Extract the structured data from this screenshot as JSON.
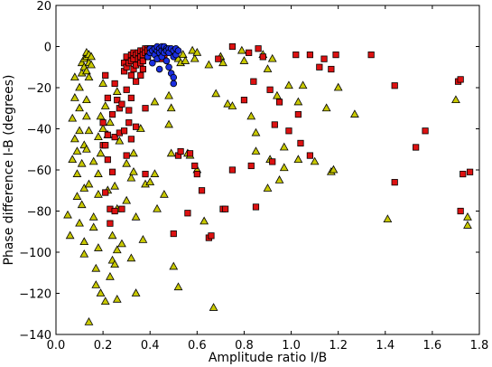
{
  "chart_data": {
    "type": "scatter",
    "title": "",
    "xlabel": "Amplitude ratio I/B",
    "ylabel": "Phase difference I-B (degrees)",
    "xlim": [
      0.0,
      1.8
    ],
    "ylim": [
      -140,
      20
    ],
    "xticks": [
      0.0,
      0.2,
      0.4,
      0.6,
      0.8,
      1.0,
      1.2,
      1.4,
      1.6,
      1.8
    ],
    "xtick_labels": [
      "0.0",
      "0.2",
      "0.4",
      "0.6",
      "0.8",
      "1.0",
      "1.2",
      "1.4",
      "1.6",
      "1.8"
    ],
    "yticks": [
      -140,
      -120,
      -100,
      -80,
      -60,
      -40,
      -20,
      0,
      20
    ],
    "ytick_labels": [
      "−140",
      "−120",
      "−100",
      "−80",
      "−60",
      "−40",
      "−20",
      "0",
      "20"
    ],
    "grid": false,
    "legend": "none",
    "series": [
      {
        "marker": "triangle",
        "color": "#c8c800",
        "points": [
          [
            0.05,
            -82
          ],
          [
            0.06,
            -92
          ],
          [
            0.07,
            -55
          ],
          [
            0.07,
            -35
          ],
          [
            0.08,
            -15
          ],
          [
            0.08,
            -25
          ],
          [
            0.08,
            -45
          ],
          [
            0.09,
            -73
          ],
          [
            0.09,
            -62
          ],
          [
            0.09,
            -51
          ],
          [
            0.1,
            -20
          ],
          [
            0.1,
            -41
          ],
          [
            0.1,
            -30
          ],
          [
            0.1,
            -86
          ],
          [
            0.11,
            -13
          ],
          [
            0.11,
            -8
          ],
          [
            0.11,
            -57
          ],
          [
            0.11,
            -77
          ],
          [
            0.12,
            -6
          ],
          [
            0.12,
            -10
          ],
          [
            0.12,
            -48
          ],
          [
            0.12,
            -69
          ],
          [
            0.12,
            -95
          ],
          [
            0.12,
            -101
          ],
          [
            0.13,
            -5
          ],
          [
            0.13,
            -3
          ],
          [
            0.13,
            -12
          ],
          [
            0.13,
            -26
          ],
          [
            0.13,
            -34
          ],
          [
            0.13,
            -50
          ],
          [
            0.14,
            -4
          ],
          [
            0.14,
            -8
          ],
          [
            0.14,
            -15
          ],
          [
            0.14,
            -41
          ],
          [
            0.14,
            -67
          ],
          [
            0.14,
            -134
          ],
          [
            0.15,
            -5
          ],
          [
            0.15,
            -9
          ],
          [
            0.16,
            -56
          ],
          [
            0.16,
            -83
          ],
          [
            0.16,
            -88
          ],
          [
            0.17,
            -108
          ],
          [
            0.17,
            -116
          ],
          [
            0.18,
            -44
          ],
          [
            0.18,
            -62
          ],
          [
            0.18,
            -72
          ],
          [
            0.18,
            -98
          ],
          [
            0.19,
            -34
          ],
          [
            0.19,
            -52
          ],
          [
            0.19,
            -120
          ],
          [
            0.2,
            -18
          ],
          [
            0.2,
            -40
          ],
          [
            0.21,
            -29
          ],
          [
            0.21,
            -124
          ],
          [
            0.22,
            -43
          ],
          [
            0.22,
            -70
          ],
          [
            0.23,
            -37
          ],
          [
            0.23,
            -112
          ],
          [
            0.24,
            -92
          ],
          [
            0.24,
            -104
          ],
          [
            0.25,
            -68
          ],
          [
            0.25,
            -106
          ],
          [
            0.26,
            -22
          ],
          [
            0.26,
            -79
          ],
          [
            0.26,
            -99
          ],
          [
            0.26,
            -123
          ],
          [
            0.27,
            -46
          ],
          [
            0.28,
            -96
          ],
          [
            0.3,
            -57
          ],
          [
            0.3,
            -75
          ],
          [
            0.32,
            -64
          ],
          [
            0.32,
            -103
          ],
          [
            0.33,
            -52
          ],
          [
            0.33,
            -61
          ],
          [
            0.34,
            -83
          ],
          [
            0.34,
            -120
          ],
          [
            0.36,
            -40
          ],
          [
            0.37,
            -94
          ],
          [
            0.38,
            -67
          ],
          [
            0.4,
            -66
          ],
          [
            0.42,
            -27
          ],
          [
            0.42,
            -62
          ],
          [
            0.43,
            -79
          ],
          [
            0.46,
            -72
          ],
          [
            0.48,
            -24
          ],
          [
            0.48,
            -38
          ],
          [
            0.49,
            -30
          ],
          [
            0.49,
            -52
          ],
          [
            0.5,
            -107
          ],
          [
            0.52,
            -117
          ],
          [
            0.52,
            -6
          ],
          [
            0.53,
            -8
          ],
          [
            0.54,
            -4
          ],
          [
            0.55,
            -7
          ],
          [
            0.56,
            -52
          ],
          [
            0.57,
            -53
          ],
          [
            0.58,
            -2
          ],
          [
            0.59,
            -6
          ],
          [
            0.6,
            -3
          ],
          [
            0.6,
            -60
          ],
          [
            0.63,
            -85
          ],
          [
            0.65,
            -9
          ],
          [
            0.67,
            -127
          ],
          [
            0.68,
            -23
          ],
          [
            0.7,
            -5
          ],
          [
            0.71,
            -8
          ],
          [
            0.73,
            -28
          ],
          [
            0.75,
            -29
          ],
          [
            0.79,
            -2
          ],
          [
            0.8,
            -7
          ],
          [
            0.83,
            -34
          ],
          [
            0.85,
            -42
          ],
          [
            0.85,
            -51
          ],
          [
            0.88,
            -4
          ],
          [
            0.9,
            -11
          ],
          [
            0.9,
            -69
          ],
          [
            0.91,
            -55
          ],
          [
            0.92,
            -6
          ],
          [
            0.94,
            -24
          ],
          [
            0.95,
            -65
          ],
          [
            0.97,
            -49
          ],
          [
            0.97,
            -59
          ],
          [
            0.99,
            -19
          ],
          [
            1.03,
            -27
          ],
          [
            1.03,
            -55
          ],
          [
            1.05,
            -19
          ],
          [
            1.1,
            -56
          ],
          [
            1.15,
            -30
          ],
          [
            1.17,
            -61
          ],
          [
            1.18,
            -60
          ],
          [
            1.2,
            -20
          ],
          [
            1.27,
            -33
          ],
          [
            1.41,
            -84
          ],
          [
            1.7,
            -26
          ],
          [
            1.75,
            -87
          ],
          [
            1.75,
            -83
          ]
        ]
      },
      {
        "marker": "square",
        "color": "#dd1111",
        "points": [
          [
            0.2,
            -37
          ],
          [
            0.2,
            -48
          ],
          [
            0.21,
            -14
          ],
          [
            0.21,
            -48
          ],
          [
            0.21,
            -71
          ],
          [
            0.22,
            -25
          ],
          [
            0.22,
            -43
          ],
          [
            0.22,
            -55
          ],
          [
            0.23,
            -79
          ],
          [
            0.23,
            -86
          ],
          [
            0.24,
            -33
          ],
          [
            0.24,
            -61
          ],
          [
            0.25,
            -44
          ],
          [
            0.25,
            -80
          ],
          [
            0.25,
            -18
          ],
          [
            0.26,
            -26
          ],
          [
            0.27,
            -42
          ],
          [
            0.27,
            -30
          ],
          [
            0.28,
            -28
          ],
          [
            0.28,
            -79
          ],
          [
            0.29,
            -8
          ],
          [
            0.29,
            -12
          ],
          [
            0.29,
            -41
          ],
          [
            0.3,
            -5
          ],
          [
            0.3,
            -10
          ],
          [
            0.3,
            -21
          ],
          [
            0.3,
            -53
          ],
          [
            0.31,
            -8
          ],
          [
            0.31,
            -31
          ],
          [
            0.31,
            -37
          ],
          [
            0.32,
            -4
          ],
          [
            0.32,
            -7
          ],
          [
            0.32,
            -14
          ],
          [
            0.32,
            -25
          ],
          [
            0.32,
            -45
          ],
          [
            0.33,
            -3
          ],
          [
            0.33,
            -6
          ],
          [
            0.33,
            -11
          ],
          [
            0.34,
            -4
          ],
          [
            0.34,
            -9
          ],
          [
            0.34,
            -17
          ],
          [
            0.34,
            -39
          ],
          [
            0.35,
            -3
          ],
          [
            0.35,
            -6
          ],
          [
            0.36,
            -2
          ],
          [
            0.36,
            -5
          ],
          [
            0.36,
            -8
          ],
          [
            0.36,
            -14
          ],
          [
            0.37,
            -2
          ],
          [
            0.37,
            -4
          ],
          [
            0.37,
            -7
          ],
          [
            0.37,
            -11
          ],
          [
            0.38,
            -1
          ],
          [
            0.38,
            -3
          ],
          [
            0.38,
            -62
          ],
          [
            0.38,
            -30
          ],
          [
            0.39,
            -1
          ],
          [
            0.39,
            -2
          ],
          [
            0.39,
            -5
          ],
          [
            0.4,
            -1
          ],
          [
            0.4,
            -3
          ],
          [
            0.41,
            -2
          ],
          [
            0.41,
            -1
          ],
          [
            0.42,
            -1
          ],
          [
            0.43,
            -3
          ],
          [
            0.44,
            -2
          ],
          [
            0.45,
            -6
          ],
          [
            0.46,
            -4
          ],
          [
            0.48,
            -2
          ],
          [
            0.5,
            -91
          ],
          [
            0.52,
            -53
          ],
          [
            0.53,
            -51
          ],
          [
            0.56,
            -81
          ],
          [
            0.57,
            -52
          ],
          [
            0.59,
            -58
          ],
          [
            0.6,
            -62
          ],
          [
            0.62,
            -70
          ],
          [
            0.65,
            -93
          ],
          [
            0.66,
            -92
          ],
          [
            0.69,
            -6
          ],
          [
            0.71,
            -79
          ],
          [
            0.72,
            -79
          ],
          [
            0.75,
            0
          ],
          [
            0.75,
            -60
          ],
          [
            0.8,
            -26
          ],
          [
            0.82,
            -3
          ],
          [
            0.83,
            -58
          ],
          [
            0.84,
            -17
          ],
          [
            0.85,
            -78
          ],
          [
            0.86,
            -1
          ],
          [
            0.88,
            -5
          ],
          [
            0.91,
            -21
          ],
          [
            0.92,
            -56
          ],
          [
            0.93,
            -38
          ],
          [
            0.95,
            -27
          ],
          [
            0.99,
            -41
          ],
          [
            1.02,
            -4
          ],
          [
            1.03,
            -33
          ],
          [
            1.04,
            -47
          ],
          [
            1.08,
            -4
          ],
          [
            1.08,
            -53
          ],
          [
            1.12,
            -10
          ],
          [
            1.14,
            -6
          ],
          [
            1.17,
            -11
          ],
          [
            1.19,
            -4
          ],
          [
            1.34,
            -4
          ],
          [
            1.44,
            -19
          ],
          [
            1.44,
            -66
          ],
          [
            1.53,
            -49
          ],
          [
            1.57,
            -41
          ],
          [
            1.71,
            -17
          ],
          [
            1.72,
            -16
          ],
          [
            1.72,
            -80
          ],
          [
            1.73,
            -62
          ],
          [
            1.76,
            -61
          ]
        ]
      },
      {
        "marker": "circle",
        "color": "#1a2ee0",
        "points": [
          [
            0.39,
            -5
          ],
          [
            0.4,
            -1
          ],
          [
            0.4,
            -3
          ],
          [
            0.41,
            -2
          ],
          [
            0.41,
            -8
          ],
          [
            0.42,
            -1
          ],
          [
            0.42,
            -4
          ],
          [
            0.43,
            -2
          ],
          [
            0.43,
            0
          ],
          [
            0.43,
            -6
          ],
          [
            0.44,
            -1
          ],
          [
            0.44,
            -3
          ],
          [
            0.44,
            -11
          ],
          [
            0.45,
            0
          ],
          [
            0.45,
            -2
          ],
          [
            0.45,
            -5
          ],
          [
            0.46,
            -1
          ],
          [
            0.46,
            -3
          ],
          [
            0.46,
            0
          ],
          [
            0.47,
            -1
          ],
          [
            0.47,
            -2
          ],
          [
            0.47,
            -7
          ],
          [
            0.48,
            -1
          ],
          [
            0.48,
            -3
          ],
          [
            0.48,
            -10
          ],
          [
            0.49,
            -13
          ],
          [
            0.49,
            -1
          ],
          [
            0.5,
            -2
          ],
          [
            0.5,
            -15
          ],
          [
            0.5,
            -18
          ],
          [
            0.5,
            -5
          ],
          [
            0.51,
            -1
          ],
          [
            0.51,
            -4
          ],
          [
            0.52,
            -2
          ]
        ]
      }
    ]
  }
}
